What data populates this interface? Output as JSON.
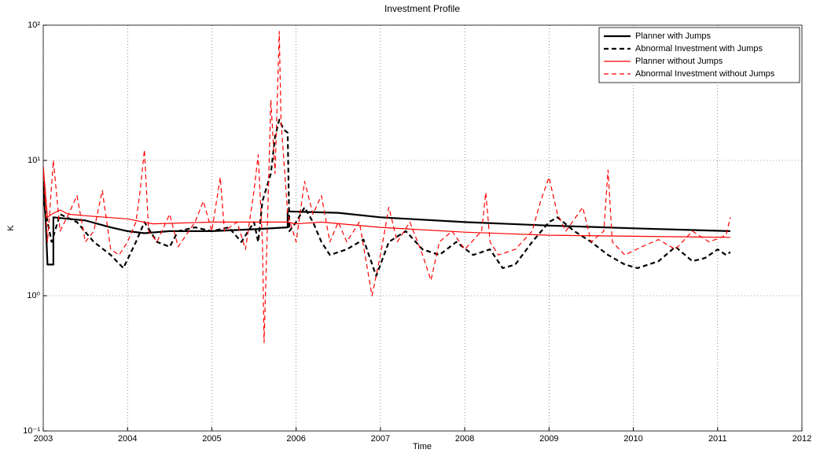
{
  "chart_data": {
    "type": "line",
    "title": "Investment Profile",
    "x_label": "Time",
    "y_label": "K",
    "xlim": [
      2003,
      2012
    ],
    "xticks": [
      2003,
      2004,
      2005,
      2006,
      2007,
      2008,
      2009,
      2010,
      2011,
      2012
    ],
    "ylim": [
      0.1,
      100
    ],
    "log_y": true,
    "yticks": [
      {
        "value": 0.1,
        "label": "10⁻¹"
      },
      {
        "value": 1,
        "label": "10⁰"
      },
      {
        "value": 10,
        "label": "10¹"
      },
      {
        "value": 100,
        "label": "10²"
      }
    ],
    "grid": true,
    "legend": "top-right",
    "series": [
      {
        "name": "Planner with Jumps",
        "color": "#000000",
        "linestyle": "solid",
        "linewidth": 2.2,
        "x": [
          2003.0,
          2003.03,
          2003.05,
          2003.12,
          2003.12,
          2003.3,
          2003.5,
          2003.8,
          2004.0,
          2004.2,
          2004.5,
          2005.0,
          2005.5,
          2005.9,
          2005.9,
          2006.5,
          2007.0,
          2008.0,
          2009.0,
          2010.0,
          2011.15
        ],
        "values": [
          7,
          3.5,
          1.7,
          1.7,
          3.8,
          3.7,
          3.6,
          3.2,
          3.0,
          2.9,
          3.0,
          3.0,
          3.1,
          3.2,
          4.2,
          4.1,
          3.8,
          3.5,
          3.3,
          3.15,
          3.0
        ]
      },
      {
        "name": "Abnormal Investment with Jumps",
        "color": "#000000",
        "linestyle": "dashed",
        "linewidth": 2.2,
        "x": [
          2003.0,
          2003.1,
          2003.2,
          2003.4,
          2003.6,
          2003.8,
          2003.95,
          2004.1,
          2004.2,
          2004.35,
          2004.5,
          2004.6,
          2004.8,
          2005.0,
          2005.2,
          2005.35,
          2005.5,
          2005.55,
          2005.6,
          2005.7,
          2005.75,
          2005.8,
          2005.85,
          2005.9,
          2005.92,
          2006.0,
          2006.1,
          2006.2,
          2006.3,
          2006.4,
          2006.6,
          2006.8,
          2006.95,
          2007.1,
          2007.3,
          2007.5,
          2007.7,
          2007.9,
          2008.1,
          2008.3,
          2008.45,
          2008.6,
          2008.8,
          2009.0,
          2009.1,
          2009.3,
          2009.5,
          2009.7,
          2009.9,
          2010.05,
          2010.3,
          2010.5,
          2010.7,
          2010.85,
          2011.0,
          2011.1,
          2011.15
        ],
        "values": [
          5,
          2.5,
          4,
          3.5,
          2.5,
          2.0,
          1.6,
          2.5,
          3.5,
          2.5,
          2.3,
          3.0,
          3.2,
          3.0,
          3.2,
          2.5,
          3.5,
          2.5,
          5,
          8,
          15,
          20,
          17,
          16,
          3.0,
          3.5,
          4.5,
          3.5,
          2.5,
          2.0,
          2.2,
          2.6,
          1.4,
          2.5,
          3.0,
          2.2,
          2.0,
          2.5,
          2.0,
          2.2,
          1.6,
          1.7,
          2.5,
          3.5,
          3.8,
          3.0,
          2.5,
          2.0,
          1.7,
          1.6,
          1.8,
          2.3,
          1.8,
          1.9,
          2.2,
          2.0,
          2.1
        ]
      },
      {
        "name": "Planner without Jumps",
        "color": "#ff0000",
        "linestyle": "solid",
        "linewidth": 1.2,
        "x": [
          2003.0,
          2003.05,
          2003.1,
          2003.2,
          2003.3,
          2003.5,
          2004.0,
          2004.3,
          2005.0,
          2005.5,
          2005.9,
          2006.0,
          2006.3,
          2007.0,
          2008.0,
          2009.0,
          2010.0,
          2011.15
        ],
        "values": [
          9,
          3.8,
          4.0,
          4.3,
          4.0,
          3.9,
          3.7,
          3.4,
          3.5,
          3.5,
          3.5,
          3.4,
          3.5,
          3.2,
          2.95,
          2.8,
          2.75,
          2.7
        ]
      },
      {
        "name": "Abnormal Investment without Jumps",
        "color": "#ff0000",
        "linestyle": "dashed",
        "linewidth": 1.2,
        "x": [
          2003.0,
          2003.05,
          2003.12,
          2003.2,
          2003.3,
          2003.4,
          2003.5,
          2003.6,
          2003.7,
          2003.8,
          2003.9,
          2004.0,
          2004.1,
          2004.15,
          2004.2,
          2004.25,
          2004.35,
          2004.5,
          2004.6,
          2004.8,
          2004.9,
          2005.0,
          2005.1,
          2005.15,
          2005.3,
          2005.4,
          2005.5,
          2005.55,
          2005.6,
          2005.62,
          2005.65,
          2005.7,
          2005.75,
          2005.8,
          2005.82,
          2005.9,
          2006.0,
          2006.1,
          2006.2,
          2006.3,
          2006.4,
          2006.5,
          2006.6,
          2006.75,
          2006.9,
          2007.0,
          2007.1,
          2007.2,
          2007.35,
          2007.5,
          2007.6,
          2007.7,
          2007.85,
          2008.0,
          2008.2,
          2008.25,
          2008.3,
          2008.4,
          2008.6,
          2008.8,
          2008.9,
          2009.0,
          2009.1,
          2009.2,
          2009.4,
          2009.5,
          2009.65,
          2009.7,
          2009.75,
          2009.9,
          2010.1,
          2010.3,
          2010.5,
          2010.7,
          2010.9,
          2011.1,
          2011.15
        ],
        "values": [
          9,
          2.5,
          10,
          3,
          4,
          5.5,
          2.5,
          3,
          6,
          2.2,
          2.0,
          2.5,
          3.5,
          6,
          12,
          3,
          2.5,
          4,
          2.3,
          3.5,
          5,
          3,
          7.5,
          3,
          3.5,
          2.2,
          6,
          11,
          2.5,
          0.45,
          2,
          28,
          8,
          90,
          20,
          4,
          2.5,
          7,
          4,
          5.5,
          2.5,
          3.5,
          2.5,
          3.5,
          1.0,
          2.0,
          4.5,
          2.5,
          3.5,
          2.0,
          1.3,
          2.5,
          3.0,
          2.2,
          3.0,
          5.8,
          2.5,
          2.0,
          2.2,
          3.0,
          5,
          7.5,
          4,
          3.0,
          4.5,
          2.5,
          3.0,
          8.5,
          2.5,
          2.0,
          2.3,
          2.6,
          2.2,
          3.0,
          2.5,
          2.8,
          3.8
        ]
      }
    ]
  }
}
